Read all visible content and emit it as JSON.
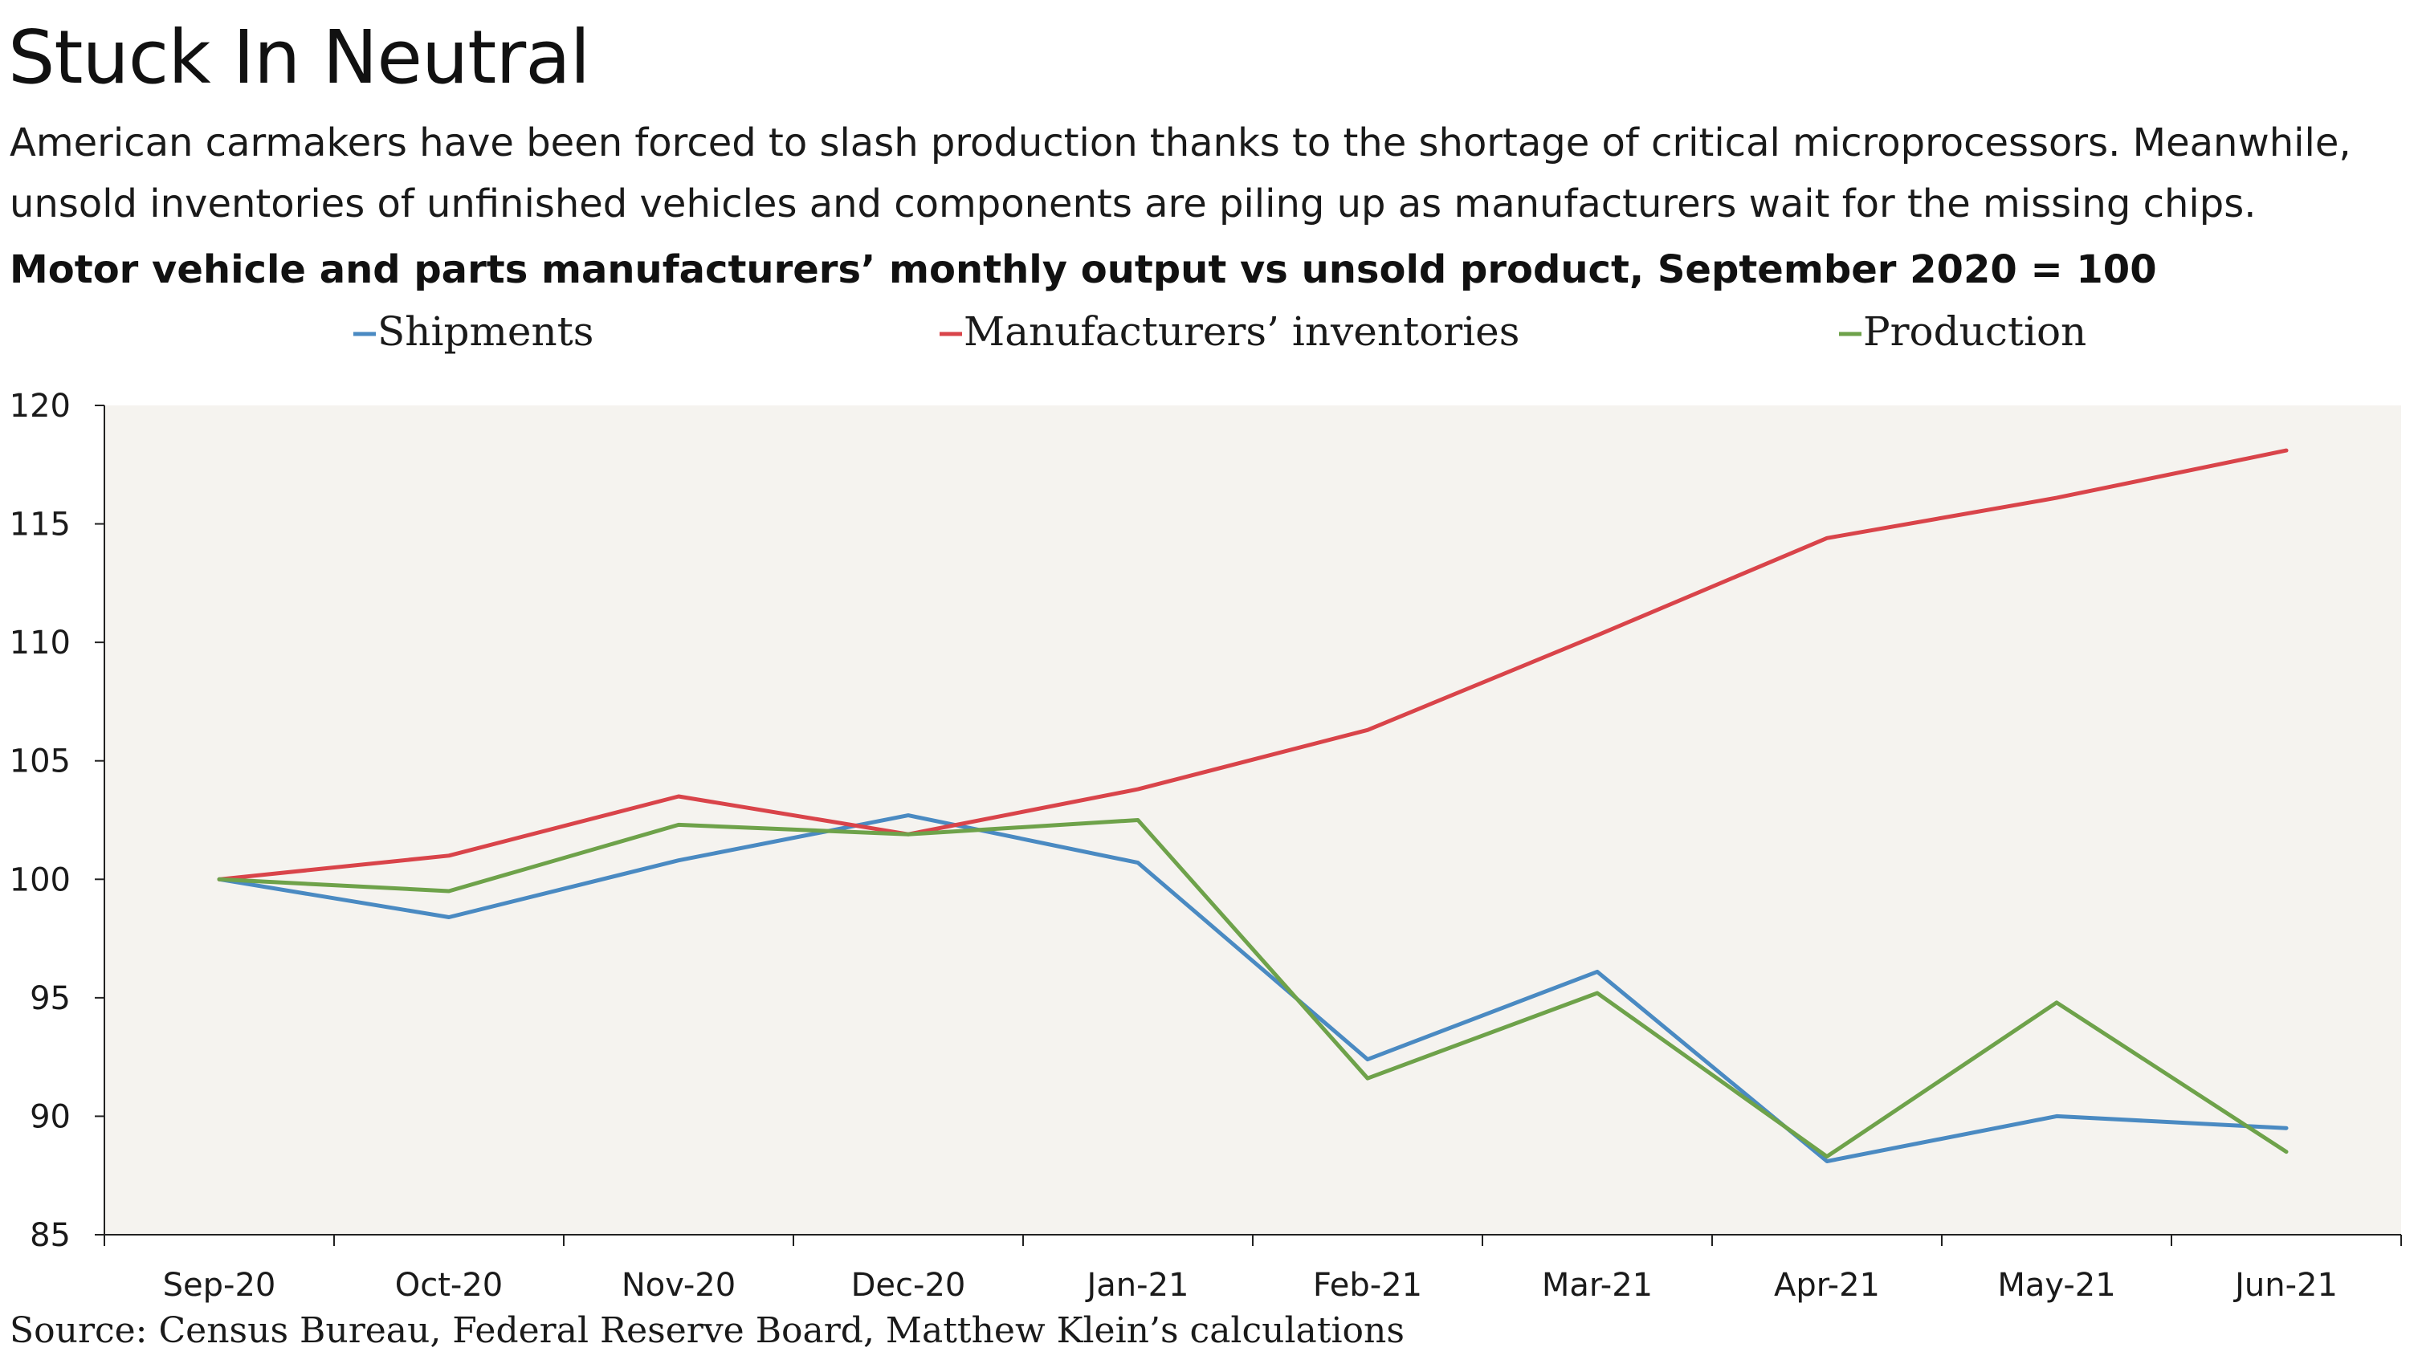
{
  "header": {
    "title": "Stuck In Neutral",
    "subtitle": "American carmakers have been forced to slash production thanks to the shortage of critical microprocessors. Meanwhile, unsold inventories of unfinished vehicles and components are piling up as manufacturers wait for the missing chips.",
    "chart_heading": "Motor vehicle and parts manufacturers’ monthly output vs unsold product, September 2020 = 100"
  },
  "footer": {
    "source": "Source: Census Bureau, Federal Reserve Board, Matthew Klein’s calculations"
  },
  "chart_data": {
    "type": "line",
    "title": "Motor vehicle and parts manufacturers’ monthly output vs unsold product, September 2020 = 100",
    "xlabel": "",
    "ylabel": "",
    "categories": [
      "Sep-20",
      "Oct-20",
      "Nov-20",
      "Dec-20",
      "Jan-21",
      "Feb-21",
      "Mar-21",
      "Apr-21",
      "May-21",
      "Jun-21"
    ],
    "ylim": [
      85,
      120
    ],
    "yticks": [
      85,
      90,
      95,
      100,
      105,
      110,
      115,
      120
    ],
    "grid": false,
    "legend": "top",
    "series": [
      {
        "name": "Shipments",
        "color": "#4a8ac2",
        "values": [
          100,
          98.4,
          100.8,
          102.7,
          100.7,
          92.4,
          96.1,
          88.1,
          90.0,
          89.5
        ]
      },
      {
        "name": "Manufacturers’ inventories",
        "color": "#d9444a",
        "values": [
          100,
          101.0,
          103.5,
          101.9,
          103.8,
          106.3,
          110.3,
          114.4,
          116.1,
          118.1
        ]
      },
      {
        "name": "Production",
        "color": "#6ea24a",
        "values": [
          100,
          99.5,
          102.3,
          101.9,
          102.5,
          91.6,
          95.2,
          88.3,
          94.8,
          88.5
        ]
      }
    ],
    "plot_background": "#f5f3ef"
  }
}
